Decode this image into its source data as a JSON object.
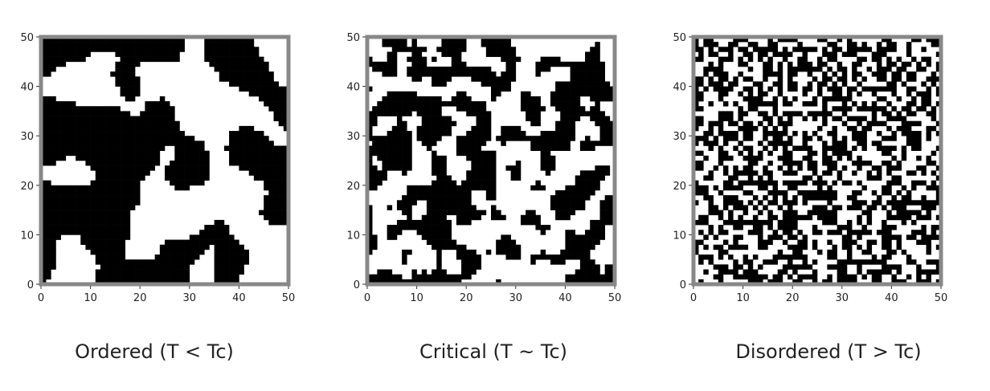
{
  "chart_data": [
    {
      "type": "heatmap",
      "title": "",
      "caption": "Ordered (T < Tc)",
      "xlabel": "",
      "ylabel": "",
      "xlim": [
        0,
        50
      ],
      "ylim": [
        0,
        50
      ],
      "x_ticks": [
        0,
        10,
        20,
        30,
        40,
        50
      ],
      "y_ticks": [
        0,
        10,
        20,
        30,
        40,
        50
      ],
      "grid_size": 50,
      "values": [
        -1,
        1
      ],
      "colormap": {
        "-1": "#000000",
        "1": "#ffffff"
      },
      "black_fraction": 0.55,
      "pattern": "large domains"
    },
    {
      "type": "heatmap",
      "title": "",
      "caption": "Critical (T ~ Tc)",
      "xlabel": "",
      "ylabel": "",
      "xlim": [
        0,
        50
      ],
      "ylim": [
        0,
        50
      ],
      "x_ticks": [
        0,
        10,
        20,
        30,
        40,
        50
      ],
      "y_ticks": [
        0,
        10,
        20,
        30,
        40,
        50
      ],
      "grid_size": 50,
      "values": [
        -1,
        1
      ],
      "colormap": {
        "-1": "#000000",
        "1": "#ffffff"
      },
      "black_fraction": 0.48,
      "pattern": "fractal clusters"
    },
    {
      "type": "heatmap",
      "title": "",
      "caption": "Disordered (T > Tc)",
      "xlabel": "",
      "ylabel": "",
      "xlim": [
        0,
        50
      ],
      "ylim": [
        0,
        50
      ],
      "x_ticks": [
        0,
        10,
        20,
        30,
        40,
        50
      ],
      "y_ticks": [
        0,
        10,
        20,
        30,
        40,
        50
      ],
      "grid_size": 50,
      "values": [
        -1,
        1
      ],
      "colormap": {
        "-1": "#000000",
        "1": "#ffffff"
      },
      "black_fraction": 0.5,
      "pattern": "random"
    }
  ],
  "colors": {
    "spin_down": "#000000",
    "spin_up": "#ffffff",
    "frame": "#888888",
    "text": "#222222"
  }
}
